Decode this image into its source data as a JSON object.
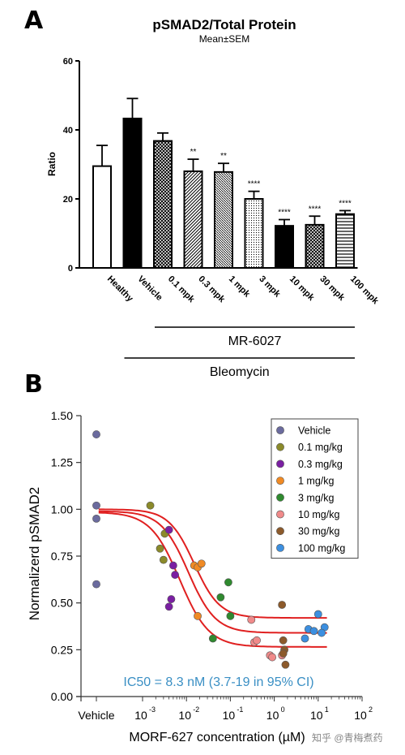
{
  "panel_a_letter": "A",
  "panel_b_letter": "B",
  "watermark": "知乎 @青梅煮药",
  "chart_data": [
    {
      "type": "bar",
      "title": "pSMAD2/Total Protein",
      "subtitle": "Mean±SEM",
      "ylabel": "Ratio",
      "xlabel": "",
      "ylim": [
        0,
        60
      ],
      "yticks": [
        0,
        20,
        40,
        60
      ],
      "categories": [
        "Healthy",
        "Vehicle",
        "0.1 mpk",
        "0.3 mpk",
        "1 mpk",
        "3 mpk",
        "10 mpk",
        "30 mpk",
        "100 mpk"
      ],
      "values": [
        29.5,
        43.3,
        36.8,
        28.0,
        27.8,
        20.0,
        12.2,
        12.5,
        15.6
      ],
      "errors": [
        6.0,
        5.8,
        2.3,
        3.5,
        2.5,
        2.2,
        1.8,
        2.5,
        1.0
      ],
      "significance": [
        "",
        "",
        "",
        "**",
        "**",
        "****",
        "****",
        "****",
        "****"
      ],
      "fills": [
        "white",
        "black",
        "crosshatch",
        "diagonal",
        "diagonal-dense",
        "dots",
        "black",
        "crosshatch",
        "horizontal"
      ],
      "group_labels": [
        {
          "label": "MR-6027",
          "from": "0.1 mpk",
          "to": "100 mpk"
        },
        {
          "label": "Bleomycin",
          "from": "Vehicle",
          "to": "100 mpk"
        }
      ]
    },
    {
      "type": "scatter",
      "xlabel": "MORF-627 concentration (µM)",
      "ylabel": "Normalizerd pSMAD2",
      "xscale": "log",
      "xlim": [
        0.0001,
        100
      ],
      "ylim": [
        0,
        1.5
      ],
      "yticks": [
        "0.00",
        "0.25",
        "0.50",
        "0.75",
        "1.00",
        "1.25",
        "1.50"
      ],
      "xticks": [
        "Vehicle",
        "10^-3",
        "10^-2",
        "10^-1",
        "10^0",
        "10^1",
        "10^2"
      ],
      "legend_position": "top-right",
      "annotation": "IC50 = 8.3 nM (3.7-19 in 95% CI)",
      "annotation_color": "#3a8fc4",
      "curve_color": "#e02020",
      "fits": [
        {
          "top": 1.0,
          "bottom": 0.42,
          "ic50": 0.015,
          "hill": 1.5
        },
        {
          "top": 0.99,
          "bottom": 0.34,
          "ic50": 0.011,
          "hill": 1.4
        },
        {
          "top": 0.985,
          "bottom": 0.265,
          "ic50": 0.007,
          "hill": 1.3
        }
      ],
      "series": [
        {
          "name": "Vehicle",
          "color": "#6b6b9e",
          "points": [
            [
              "vehicle",
              1.4
            ],
            [
              "vehicle",
              1.02
            ],
            [
              "vehicle",
              0.95
            ],
            [
              "vehicle",
              0.6
            ]
          ]
        },
        {
          "name": "0.1 mg/kg",
          "color": "#8b8a2a",
          "points": [
            [
              0.0015,
              1.02
            ],
            [
              0.0025,
              0.79
            ],
            [
              0.003,
              0.73
            ],
            [
              0.0032,
              0.87
            ]
          ]
        },
        {
          "name": "0.3 mg/kg",
          "color": "#7a1fa2",
          "points": [
            [
              0.004,
              0.89
            ],
            [
              0.004,
              0.48
            ],
            [
              0.005,
              0.7
            ],
            [
              0.0055,
              0.65
            ],
            [
              0.0045,
              0.52
            ]
          ]
        },
        {
          "name": "1 mg/kg",
          "color": "#f08a24",
          "points": [
            [
              0.015,
              0.7
            ],
            [
              0.018,
              0.69
            ],
            [
              0.022,
              0.71
            ],
            [
              0.018,
              0.43
            ]
          ]
        },
        {
          "name": "3 mg/kg",
          "color": "#2f8a2f",
          "points": [
            [
              0.06,
              0.53
            ],
            [
              0.04,
              0.31
            ],
            [
              0.09,
              0.61
            ],
            [
              0.1,
              0.43
            ]
          ]
        },
        {
          "name": "10 mg/kg",
          "color": "#f08a8a",
          "points": [
            [
              0.3,
              0.41
            ],
            [
              0.35,
              0.29
            ],
            [
              0.4,
              0.3
            ],
            [
              0.8,
              0.22
            ],
            [
              0.9,
              0.21
            ],
            [
              1.5,
              0.22
            ]
          ]
        },
        {
          "name": "30 mg/kg",
          "color": "#8c5a2b",
          "points": [
            [
              1.5,
              0.49
            ],
            [
              1.6,
              0.3
            ],
            [
              1.7,
              0.25
            ],
            [
              1.8,
              0.17
            ],
            [
              1.6,
              0.23
            ]
          ]
        },
        {
          "name": "100 mg/kg",
          "color": "#3c8fe0",
          "points": [
            [
              5,
              0.31
            ],
            [
              6,
              0.36
            ],
            [
              8,
              0.35
            ],
            [
              10,
              0.44
            ],
            [
              14,
              0.37
            ],
            [
              12,
              0.34
            ]
          ]
        }
      ]
    }
  ]
}
